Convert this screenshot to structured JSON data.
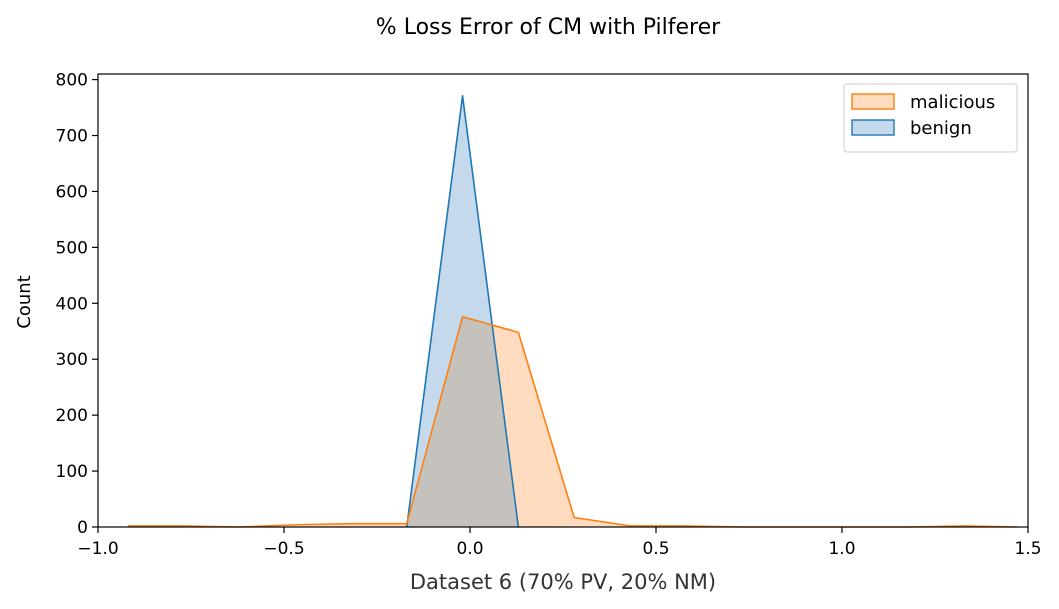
{
  "chart_data": {
    "type": "area",
    "title": "% Loss Error of CM with Pilferer",
    "xlabel": "Dataset 6 (70% PV, 20% NM)",
    "ylabel": "Count",
    "xlim": [
      -1.0,
      1.5
    ],
    "ylim": [
      0,
      810
    ],
    "xticks": [
      -1.0,
      -0.5,
      0.0,
      0.5,
      1.0,
      1.5
    ],
    "xtick_labels": [
      "−1.0",
      "−0.5",
      "0.0",
      "0.5",
      "1.0",
      "1.5"
    ],
    "yticks": [
      0,
      100,
      200,
      300,
      400,
      500,
      600,
      700,
      800
    ],
    "ytick_labels": [
      "0",
      "100",
      "200",
      "300",
      "400",
      "500",
      "600",
      "700",
      "800"
    ],
    "grid": false,
    "legend": {
      "position": "top-right",
      "entries": [
        "malicious",
        "benign"
      ]
    },
    "colors": {
      "malicious_line": "#ff7f0e",
      "malicious_fill": "#ffdcbf",
      "benign_line": "#1f77b4",
      "benign_fill": "#c4d9ec",
      "overlap_fill": "#c5c2bd"
    },
    "series": [
      {
        "name": "malicious",
        "x": [
          -0.92,
          -0.77,
          -0.62,
          -0.47,
          -0.32,
          -0.17,
          -0.02,
          0.13,
          0.28,
          0.43,
          0.58,
          0.73,
          0.88,
          1.03,
          1.18,
          1.33,
          1.47
        ],
        "y": [
          2,
          2,
          0,
          4,
          6,
          6,
          376,
          348,
          17,
          2,
          2,
          0,
          0,
          0,
          0,
          2,
          0
        ]
      },
      {
        "name": "benign",
        "x": [
          -0.17,
          -0.02,
          0.13
        ],
        "y": [
          0,
          771,
          0
        ]
      }
    ]
  }
}
